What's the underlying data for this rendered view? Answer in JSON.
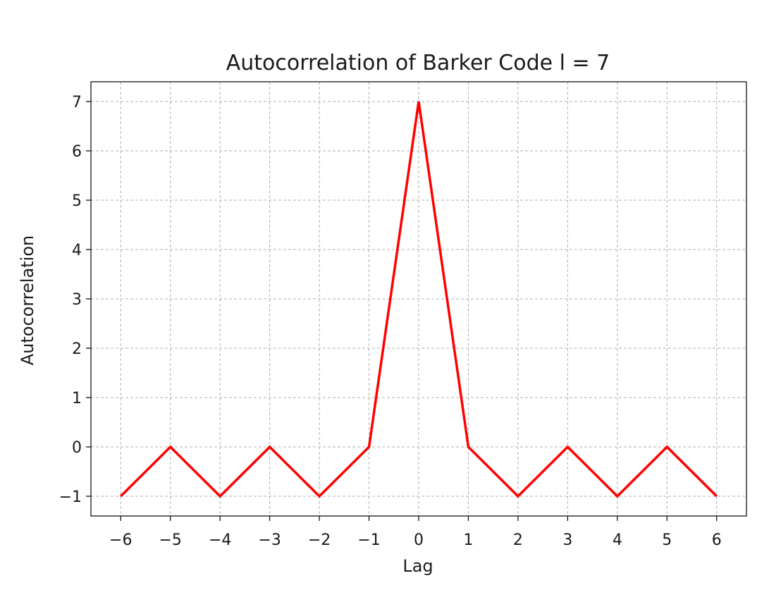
{
  "chart_data": {
    "type": "line",
    "title": "Autocorrelation of Barker Code l = 7",
    "xlabel": "Lag",
    "ylabel": "Autocorrelation",
    "x": [
      -6,
      -5,
      -4,
      -3,
      -2,
      -1,
      0,
      1,
      2,
      3,
      4,
      5,
      6
    ],
    "series": [
      {
        "values": [
          -1,
          0,
          -1,
          0,
          -1,
          0,
          7,
          0,
          -1,
          0,
          -1,
          0,
          -1
        ],
        "color": "#ff0000"
      }
    ],
    "xticks": [
      "−6",
      "−5",
      "−4",
      "−3",
      "−2",
      "−1",
      "0",
      "1",
      "2",
      "3",
      "4",
      "5",
      "6"
    ],
    "yticks": [
      "−1",
      "0",
      "1",
      "2",
      "3",
      "4",
      "5",
      "6",
      "7"
    ],
    "xlim": [
      -6.6,
      6.6
    ],
    "ylim": [
      -1.4,
      7.4
    ],
    "grid": true
  }
}
